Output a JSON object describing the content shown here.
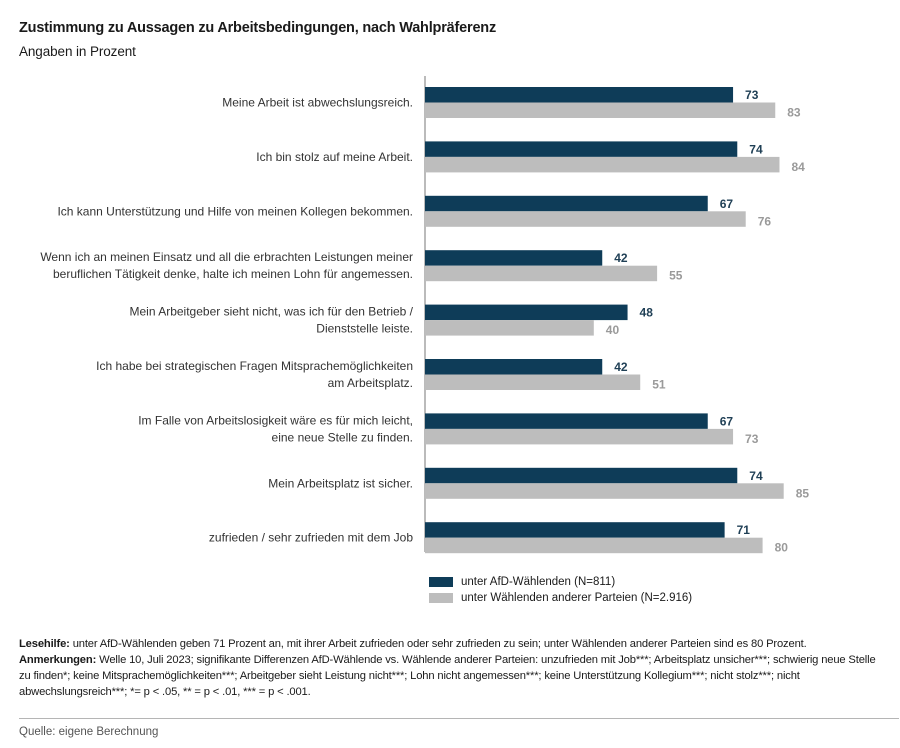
{
  "title": "Zustimmung zu Aussagen zu Arbeitsbedingungen, nach Wahlpräferenz",
  "subtitle": "Angaben in Prozent",
  "colors": {
    "series_a": "#0e3c58",
    "series_b": "#bdbdbd"
  },
  "chart_data": {
    "type": "bar",
    "orientation": "horizontal",
    "categories": [
      [
        "Meine Arbeit ist abwechslungsreich."
      ],
      [
        "Ich bin stolz auf meine Arbeit."
      ],
      [
        "Ich kann Unterstützung und Hilfe von meinen Kollegen bekommen."
      ],
      [
        "Wenn ich an meinen Einsatz und all die erbrachten Leistungen meiner",
        "beruflichen Tätigkeit denke, halte ich meinen Lohn für angemessen."
      ],
      [
        "Mein Arbeitgeber sieht nicht, was ich für den Betrieb /",
        "Dienststelle leiste."
      ],
      [
        "Ich habe bei strategischen Fragen Mitsprachemöglichkeiten",
        "am Arbeitsplatz."
      ],
      [
        "Im Falle von Arbeitslosigkeit wäre es für mich leicht,",
        "eine neue Stelle zu finden."
      ],
      [
        "Mein Arbeitsplatz ist sicher."
      ],
      [
        "zufrieden / sehr zufrieden mit dem Job"
      ]
    ],
    "series": [
      {
        "name": "unter AfD-Wählenden (N=811)",
        "values": [
          73,
          74,
          67,
          42,
          48,
          42,
          67,
          74,
          71
        ]
      },
      {
        "name": "unter Wählenden anderer Parteien (N=2.916)",
        "values": [
          83,
          84,
          76,
          55,
          40,
          51,
          73,
          85,
          80
        ]
      }
    ],
    "xlim": [
      0,
      100
    ],
    "grid": false,
    "legend_position": "bottom"
  },
  "notes": {
    "lesehilfe_label": "Lesehilfe:",
    "lesehilfe_text": " unter AfD-Wählenden geben 71 Prozent an, mit ihrer Arbeit zufrieden oder sehr zufrieden zu sein; unter Wählenden anderer Parteien sind es 80 Prozent.",
    "anmerkungen_label": "Anmerkungen:",
    "anmerkungen_text": " Welle 10, Juli 2023; signifikante Differenzen AfD-Wählende vs. Wählende anderer Parteien: unzufrieden mit Job***; Arbeitsplatz unsicher***; schwierig neue Stelle zu finden*; keine Mitsprachemöglichkeiten***; Arbeitgeber sieht Leistung nicht***; Lohn nicht angemessen***; keine Unterstützung Kollegium***; nicht stolz***; nicht abwechslungsreich***; *= p < .05, ** = p < .01, *** = p < .001."
  },
  "source": "Quelle: eigene Berechnung"
}
